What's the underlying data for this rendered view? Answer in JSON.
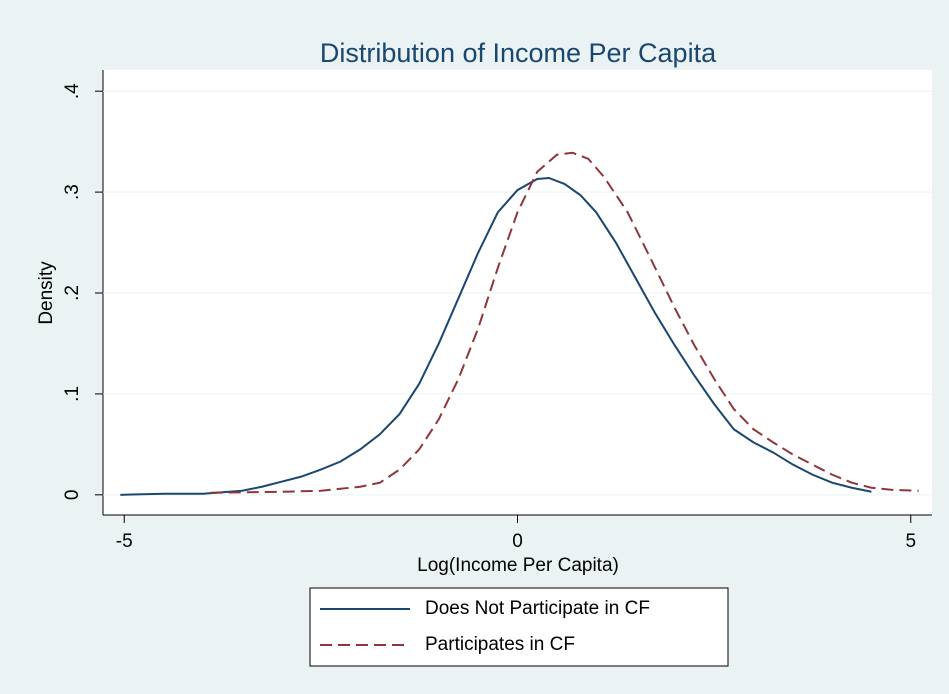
{
  "chart_data": {
    "type": "line",
    "title": "Distribution of Income Per Capita",
    "xlabel": "Log(Income Per Capita)",
    "ylabel": "Density",
    "xlim": [
      -5.27,
      5.27
    ],
    "ylim": [
      -0.02,
      0.421
    ],
    "xticks": [
      -5,
      0,
      5
    ],
    "yticks": [
      0,
      {
        "value": 0.1,
        "label": ".1"
      },
      {
        "value": 0.2,
        "label": ".2"
      },
      {
        "value": 0.3,
        "label": ".3"
      },
      {
        "value": 0.4,
        "label": ".4"
      }
    ],
    "grid": true,
    "legend": "bottom",
    "series": [
      {
        "name": "Does Not Participate in CF",
        "color": "#1a476f",
        "dash": "solid",
        "x": [
          -5.05,
          -4.5,
          -4,
          -3.5,
          -3.25,
          -3,
          -2.75,
          -2.5,
          -2.25,
          -2,
          -1.75,
          -1.5,
          -1.25,
          -1,
          -0.75,
          -0.5,
          -0.25,
          0,
          0.25,
          0.4,
          0.6,
          0.8,
          1,
          1.25,
          1.5,
          1.75,
          2,
          2.25,
          2.5,
          2.75,
          3,
          3.25,
          3.5,
          3.75,
          4,
          4.25,
          4.5
        ],
        "values": [
          0,
          0.001,
          0.001,
          0.004,
          0.008,
          0.013,
          0.018,
          0.025,
          0.033,
          0.045,
          0.06,
          0.08,
          0.11,
          0.15,
          0.195,
          0.24,
          0.28,
          0.302,
          0.313,
          0.314,
          0.308,
          0.297,
          0.28,
          0.25,
          0.215,
          0.18,
          0.148,
          0.118,
          0.09,
          0.065,
          0.052,
          0.042,
          0.03,
          0.02,
          0.012,
          0.007,
          0.003
        ]
      },
      {
        "name": "Participates in CF",
        "color": "#90353b",
        "dash": "dashed",
        "x": [
          -3.9,
          -3,
          -2.5,
          -2,
          -1.75,
          -1.5,
          -1.25,
          -1,
          -0.75,
          -0.5,
          -0.25,
          0,
          0.25,
          0.5,
          0.7,
          0.9,
          1.1,
          1.4,
          1.75,
          2,
          2.25,
          2.5,
          2.75,
          3,
          3.25,
          3.5,
          3.75,
          4,
          4.25,
          4.5,
          4.75,
          5.1
        ],
        "values": [
          0.002,
          0.003,
          0.004,
          0.008,
          0.012,
          0.025,
          0.045,
          0.075,
          0.115,
          0.165,
          0.225,
          0.28,
          0.32,
          0.337,
          0.339,
          0.333,
          0.315,
          0.28,
          0.225,
          0.185,
          0.148,
          0.115,
          0.085,
          0.065,
          0.052,
          0.04,
          0.03,
          0.02,
          0.012,
          0.007,
          0.005,
          0.004
        ]
      }
    ]
  }
}
